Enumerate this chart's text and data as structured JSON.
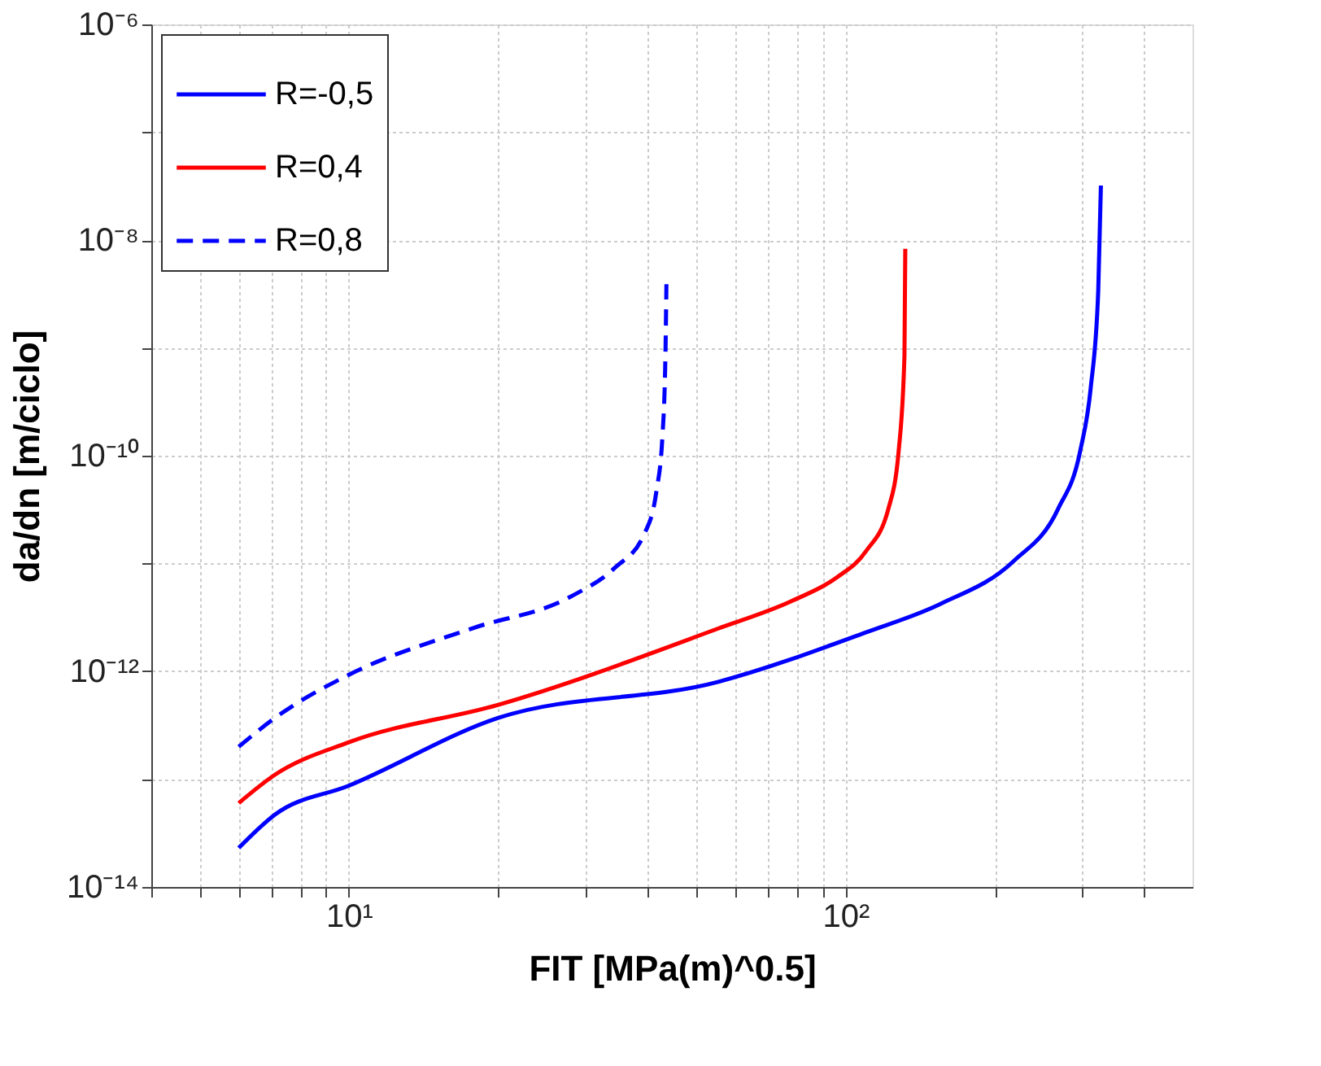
{
  "chart_data": {
    "type": "line",
    "xlabel": "FIT [MPa(m)^0.5]",
    "ylabel": "da/dn [m/ciclo]",
    "log": "xy",
    "grid": true,
    "legend": "top left",
    "marker": "none",
    "xlim": [
      4,
      500
    ],
    "ylim": [
      1e-14,
      1e-06
    ],
    "xticks": [
      {
        "value": 4,
        "label": null
      },
      {
        "value": 5,
        "label": null
      },
      {
        "value": 6,
        "label": null
      },
      {
        "value": 7,
        "label": null
      },
      {
        "value": 8,
        "label": null
      },
      {
        "value": 9,
        "label": null
      },
      {
        "value": 10,
        "label": "10¹"
      },
      {
        "value": 20,
        "label": null
      },
      {
        "value": 30,
        "label": null
      },
      {
        "value": 40,
        "label": null
      },
      {
        "value": 50,
        "label": null
      },
      {
        "value": 60,
        "label": null
      },
      {
        "value": 70,
        "label": null
      },
      {
        "value": 80,
        "label": null
      },
      {
        "value": 90,
        "label": null
      },
      {
        "value": 100,
        "label": "10²"
      },
      {
        "value": 200,
        "label": null
      },
      {
        "value": 300,
        "label": null
      },
      {
        "value": 400,
        "label": null
      }
    ],
    "yticks": [
      {
        "value": 1e-14,
        "label": "10⁻¹⁴"
      },
      {
        "value": 1e-13,
        "label": null
      },
      {
        "value": 1e-12,
        "label": "10⁻¹²"
      },
      {
        "value": 1e-11,
        "label": null
      },
      {
        "value": 1e-10,
        "label": "10⁻¹⁰"
      },
      {
        "value": 1e-09,
        "label": null
      },
      {
        "value": 1e-08,
        "label": "10⁻⁸"
      },
      {
        "value": 1e-07,
        "label": null
      },
      {
        "value": 1e-06,
        "label": "10⁻⁶"
      }
    ],
    "series": [
      {
        "name": "R=-0,5",
        "color": "#0000ff",
        "line_style": "solid",
        "x": [
          6.0,
          7.1,
          10,
          20,
          55.5,
          110,
          155,
          218,
          268,
          297,
          312,
          323,
          327
        ],
        "values": [
          2.3e-14,
          4.7e-14,
          8.7e-14,
          3.7e-13,
          8e-13,
          2.3e-12,
          4.2e-12,
          1.05e-11,
          3.2e-11,
          1.1e-10,
          4.3e-10,
          3.4e-09,
          3.2e-08
        ]
      },
      {
        "name": "R=0,4",
        "color": "#ff0000",
        "line_style": "solid",
        "x": [
          6.0,
          7.1,
          10,
          20,
          55.5,
          78,
          96,
          110,
          122,
          128,
          131.5,
          132
        ],
        "values": [
          6e-14,
          1.1e-13,
          2.2e-13,
          4.9e-13,
          2.5e-12,
          4.5e-12,
          7.4e-12,
          1.3e-11,
          3.2e-11,
          1.1e-10,
          8.5e-10,
          8.3e-09
        ]
      },
      {
        "name": "R=0,8",
        "color": "#0000ff",
        "line_style": "dashed",
        "x": [
          6.0,
          7.1,
          10,
          17.7,
          27.9,
          34.3,
          39.4,
          41.6,
          42.8,
          43.4,
          43.6
        ],
        "values": [
          2e-13,
          3.7e-13,
          9.3e-13,
          2.5e-12,
          4.9e-12,
          9.1e-12,
          1.9e-11,
          4.6e-11,
          1.5e-10,
          8.5e-10,
          3.9e-09
        ]
      }
    ]
  }
}
